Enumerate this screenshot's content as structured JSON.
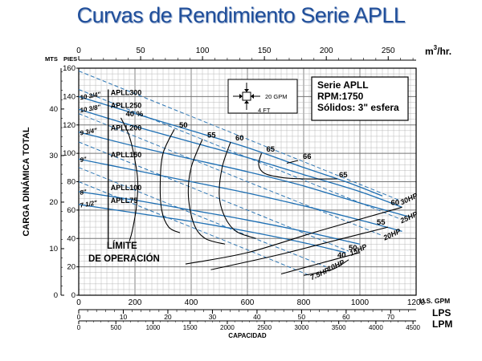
{
  "title": "Curvas de Rendimiento Serie APLL",
  "chart_data": {
    "type": "line",
    "title": "Curvas de Rendimiento Serie APLL",
    "ylabel": "CARGA DINÁMICA TOTAL",
    "xlabel": "CAPACIDAD",
    "x_unit": "U.S. GPM",
    "x_range": [
      0,
      1200
    ],
    "x_ticks": [
      "0",
      "200",
      "400",
      "600",
      "800",
      "1000",
      "1200"
    ],
    "y_unit": "PIES",
    "y_range": [
      0,
      160
    ],
    "y_ticks": [
      "0",
      "20",
      "40",
      "60",
      "80",
      "100",
      "120",
      "140",
      "160"
    ],
    "y_secondary": {
      "unit": "MTS",
      "ticks": [
        "0",
        "10",
        "20",
        "30",
        "40"
      ]
    },
    "x_top": {
      "unit_main": "m",
      "unit_sup": "3",
      "unit_tail": "/hr.",
      "ticks": [
        "0",
        "50",
        "100",
        "150",
        "200",
        "250"
      ]
    },
    "x_bottom_lps": {
      "unit": "LPS",
      "ticks": [
        "0",
        "10",
        "20",
        "30",
        "40",
        "50",
        "60",
        "70"
      ]
    },
    "x_bottom_lpm": {
      "unit": "LPM",
      "ticks": [
        "0",
        "500",
        "1000",
        "1500",
        "2000",
        "2500",
        "3000",
        "3500",
        "4000",
        "4500"
      ]
    },
    "info_box": [
      "Serie APLL",
      "RPM:1750",
      "Sólidos: 3\" esfera"
    ],
    "inset": {
      "gpm_label": "20 GPM",
      "ft_label": "4 FT"
    },
    "limit_label": [
      "LÍMITE",
      "DE OPERACIÓN"
    ],
    "series": [
      {
        "name": "APLL300",
        "diameter": "10 3/4\"",
        "points": [
          [
            0,
            140
          ],
          [
            200,
            128
          ],
          [
            400,
            116
          ],
          [
            600,
            104
          ],
          [
            800,
            90
          ],
          [
            950,
            80
          ],
          [
            1080,
            70
          ]
        ]
      },
      {
        "name": "APLL250",
        "diameter": "10 3/8\"",
        "points": [
          [
            0,
            131
          ],
          [
            200,
            119
          ],
          [
            400,
            108
          ],
          [
            600,
            97
          ],
          [
            800,
            85
          ],
          [
            1000,
            73
          ],
          [
            1150,
            62
          ]
        ]
      },
      {
        "name": "APLL200",
        "diameter": "9 3/4\"",
        "points": [
          [
            0,
            115
          ],
          [
            200,
            105
          ],
          [
            400,
            96
          ],
          [
            600,
            87
          ],
          [
            800,
            77
          ],
          [
            1000,
            65
          ],
          [
            1180,
            55
          ]
        ]
      },
      {
        "name": "APLL150",
        "diameter": "9\"",
        "points": [
          [
            0,
            96
          ],
          [
            200,
            88
          ],
          [
            400,
            80
          ],
          [
            600,
            72
          ],
          [
            800,
            63
          ],
          [
            1000,
            53
          ],
          [
            1150,
            45
          ]
        ]
      },
      {
        "name": "APLL100",
        "diameter": "8\"",
        "points": [
          [
            0,
            73
          ],
          [
            200,
            67
          ],
          [
            400,
            60
          ],
          [
            600,
            53
          ],
          [
            800,
            45
          ],
          [
            1000,
            36
          ]
        ]
      },
      {
        "name": "APLL75",
        "diameter": "7 1/2\"",
        "points": [
          [
            0,
            64
          ],
          [
            200,
            58
          ],
          [
            400,
            52
          ],
          [
            600,
            45
          ],
          [
            800,
            37
          ],
          [
            950,
            30
          ]
        ]
      }
    ],
    "power_lines": [
      {
        "label": "30HP",
        "points": [
          [
            0,
            158
          ],
          [
            600,
            110
          ],
          [
            1140,
            67
          ]
        ]
      },
      {
        "label": "25HP",
        "points": [
          [
            0,
            145
          ],
          [
            600,
            97
          ],
          [
            1140,
            54
          ]
        ]
      },
      {
        "label": "20HP",
        "points": [
          [
            0,
            128
          ],
          [
            600,
            80
          ],
          [
            1080,
            42
          ]
        ]
      },
      {
        "label": "15HP",
        "points": [
          [
            0,
            108
          ],
          [
            600,
            60
          ],
          [
            960,
            31
          ]
        ]
      },
      {
        "label": "10HP",
        "points": [
          [
            0,
            90
          ],
          [
            600,
            42
          ],
          [
            880,
            20
          ]
        ]
      },
      {
        "label": "7.5HP",
        "points": [
          [
            0,
            80
          ],
          [
            600,
            32
          ],
          [
            820,
            14
          ]
        ]
      }
    ],
    "efficiency_curves": [
      {
        "label": "40 %",
        "points": [
          [
            150,
            125
          ],
          [
            180,
            112
          ],
          [
            200,
            95
          ],
          [
            210,
            80
          ],
          [
            205,
            62
          ],
          [
            190,
            45
          ],
          [
            180,
            38
          ]
        ]
      },
      {
        "label": "50",
        "points": [
          [
            340,
            117
          ],
          [
            300,
            100
          ],
          [
            290,
            80
          ],
          [
            295,
            60
          ],
          [
            320,
            48
          ],
          [
            360,
            44
          ]
        ]
      },
      {
        "label": "55",
        "points": [
          [
            440,
            110
          ],
          [
            400,
            90
          ],
          [
            390,
            70
          ],
          [
            410,
            50
          ],
          [
            450,
            40
          ],
          [
            520,
            36
          ]
        ]
      },
      {
        "label": "60",
        "points": [
          [
            540,
            108
          ],
          [
            510,
            90
          ],
          [
            500,
            70
          ],
          [
            520,
            55
          ],
          [
            560,
            45
          ],
          [
            630,
            40
          ]
        ]
      },
      {
        "label": "65",
        "points": [
          [
            650,
            100
          ],
          [
            640,
            92
          ],
          [
            660,
            86
          ],
          [
            720,
            83
          ],
          [
            800,
            82
          ],
          [
            920,
            82
          ]
        ]
      },
      {
        "label": "66",
        "points": [
          [
            780,
            95
          ],
          [
            740,
            93
          ]
        ]
      }
    ],
    "efficiency_lower": [
      {
        "label": "60",
        "points": [
          [
            380,
            22
          ],
          [
            600,
            30
          ],
          [
            850,
            45
          ],
          [
            1150,
            62
          ]
        ]
      },
      {
        "label": "55",
        "points": [
          [
            470,
            18
          ],
          [
            700,
            28
          ],
          [
            900,
            38
          ],
          [
            1100,
            48
          ]
        ]
      },
      {
        "label": "50",
        "points": [
          [
            720,
            15
          ],
          [
            850,
            22
          ],
          [
            1000,
            30
          ]
        ]
      },
      {
        "label": "40",
        "points": [
          [
            800,
            14
          ],
          [
            900,
            18
          ],
          [
            960,
            25
          ]
        ]
      }
    ],
    "grid": true,
    "legend": "none"
  }
}
